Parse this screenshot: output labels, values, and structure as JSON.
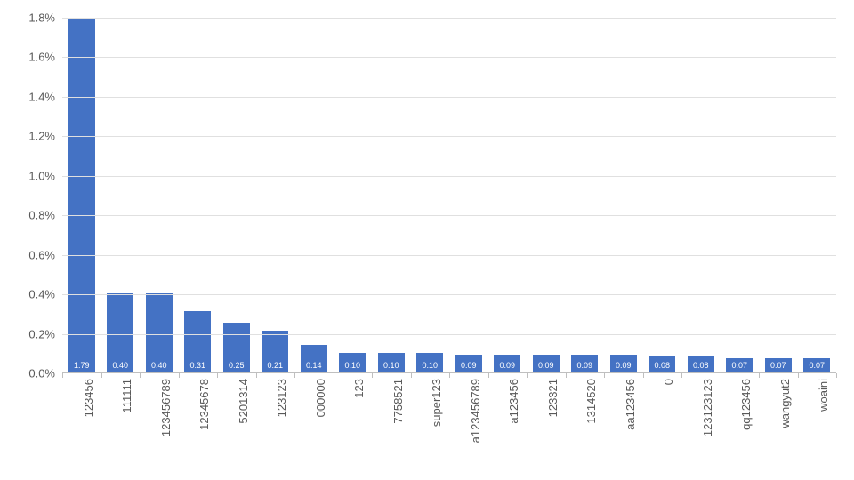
{
  "chart": {
    "type": "bar",
    "background_color": "#ffffff",
    "grid_color": "#e0e0e0",
    "axis_color": "#bfbfbf",
    "bar_color": "#4472c4",
    "bar_label_color": "#ffffff",
    "tick_label_color": "#595959",
    "tick_fontsize": 13,
    "bar_label_fontsize": 9,
    "bar_width_ratio": 0.7,
    "y_axis": {
      "min": 0.0,
      "max": 1.8,
      "step": 0.2,
      "format": "percent",
      "ticks": [
        {
          "v": 0.0,
          "label": "0.0%"
        },
        {
          "v": 0.2,
          "label": "0.2%"
        },
        {
          "v": 0.4,
          "label": "0.4%"
        },
        {
          "v": 0.6,
          "label": "0.6%"
        },
        {
          "v": 0.8,
          "label": "0.8%"
        },
        {
          "v": 1.0,
          "label": "1.0%"
        },
        {
          "v": 1.2,
          "label": "1.2%"
        },
        {
          "v": 1.4,
          "label": "1.4%"
        },
        {
          "v": 1.6,
          "label": "1.6%"
        },
        {
          "v": 1.8,
          "label": "1.8%"
        }
      ]
    },
    "data": [
      {
        "category": "123456",
        "value": 1.79,
        "label": "1.79"
      },
      {
        "category": "111111",
        "value": 0.4,
        "label": "0.40"
      },
      {
        "category": "123456789",
        "value": 0.4,
        "label": "0.40"
      },
      {
        "category": "12345678",
        "value": 0.31,
        "label": "0.31"
      },
      {
        "category": "5201314",
        "value": 0.25,
        "label": "0.25"
      },
      {
        "category": "123123",
        "value": 0.21,
        "label": "0.21"
      },
      {
        "category": "000000",
        "value": 0.14,
        "label": "0.14"
      },
      {
        "category": "123",
        "value": 0.1,
        "label": "0.10"
      },
      {
        "category": "7758521",
        "value": 0.1,
        "label": "0.10"
      },
      {
        "category": "super123",
        "value": 0.1,
        "label": "0.10"
      },
      {
        "category": "a123456789",
        "value": 0.09,
        "label": "0.09"
      },
      {
        "category": "a123456",
        "value": 0.09,
        "label": "0.09"
      },
      {
        "category": "123321",
        "value": 0.09,
        "label": "0.09"
      },
      {
        "category": "1314520",
        "value": 0.09,
        "label": "0.09"
      },
      {
        "category": "aa123456",
        "value": 0.09,
        "label": "0.09"
      },
      {
        "category": "0",
        "value": 0.08,
        "label": "0.08"
      },
      {
        "category": "123123123",
        "value": 0.08,
        "label": "0.08"
      },
      {
        "category": "qq123456",
        "value": 0.07,
        "label": "0.07"
      },
      {
        "category": "wangyut2",
        "value": 0.07,
        "label": "0.07"
      },
      {
        "category": "woaini",
        "value": 0.07,
        "label": "0.07"
      }
    ]
  }
}
